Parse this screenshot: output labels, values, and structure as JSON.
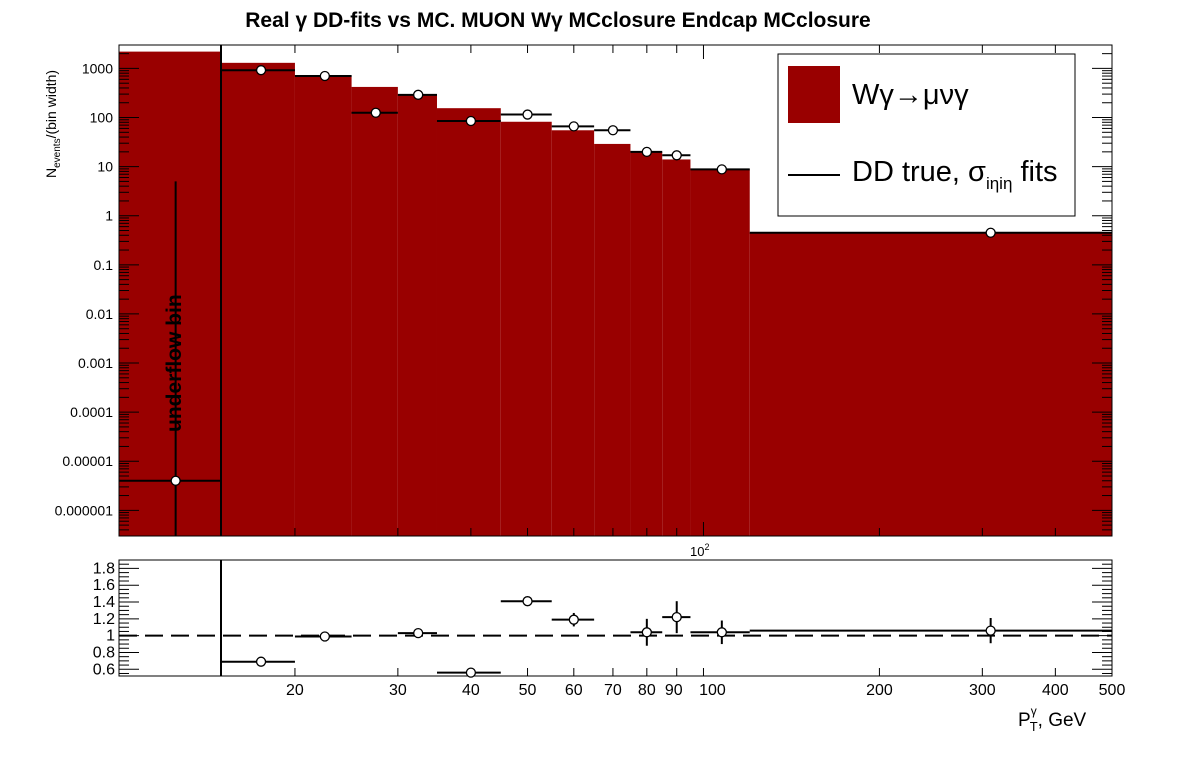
{
  "chart_data": [
    {
      "type": "bar",
      "title": "Real γ DD-fits vs MC. MUON Wγ  MCclosure Endcap  MCclosure",
      "ylabel_main": "N",
      "ylabel_sub": "events",
      "ylabel_rest": "/(bin width)",
      "x_scale": "log",
      "y_scale": "log",
      "xlim": [
        10,
        500
      ],
      "ylim": [
        3e-07,
        3000
      ],
      "yticks": [
        1000,
        100,
        10,
        1,
        0.1,
        0.01,
        0.001,
        0.0001,
        1e-05,
        1e-06
      ],
      "ytick_labels": [
        "1000",
        "100",
        "10",
        "1",
        "0.1",
        "0.01",
        "0.001",
        "0.0001",
        "0.00001",
        "0.000001"
      ],
      "x_exponent_label": "10",
      "x_exponent_power": "2",
      "annotation": "underflow bin",
      "legend": [
        {
          "label": "Wγ→μνγ",
          "style": "fill",
          "color": "#990000"
        },
        {
          "label_main": "DD true, σ",
          "label_sub": "iηiη",
          "label_rest": " fits",
          "style": "line",
          "color": "#000000"
        }
      ],
      "legend_position": "top-right",
      "mc_histogram": {
        "name": "Wγ→μνγ",
        "color": "#990000",
        "bins": [
          {
            "x_low": 10,
            "x_high": 15,
            "value": 2200
          },
          {
            "x_low": 15,
            "x_high": 20,
            "value": 1300
          },
          {
            "x_low": 20,
            "x_high": 25,
            "value": 720
          },
          {
            "x_low": 25,
            "x_high": 30,
            "value": 420
          },
          {
            "x_low": 30,
            "x_high": 35,
            "value": 300
          },
          {
            "x_low": 35,
            "x_high": 45,
            "value": 155
          },
          {
            "x_low": 45,
            "x_high": 55,
            "value": 82
          },
          {
            "x_low": 55,
            "x_high": 65,
            "value": 55
          },
          {
            "x_low": 65,
            "x_high": 75,
            "value": 29
          },
          {
            "x_low": 75,
            "x_high": 85,
            "value": 20
          },
          {
            "x_low": 85,
            "x_high": 95,
            "value": 14
          },
          {
            "x_low": 95,
            "x_high": 120,
            "value": 8.8
          },
          {
            "x_low": 120,
            "x_high": 500,
            "value": 0.45
          }
        ]
      },
      "dd_points": {
        "name": "DD true, σiηiη fits",
        "points": [
          {
            "x": 12.5,
            "x_low": 10,
            "x_high": 15,
            "y": 4e-06,
            "y_low": 3e-07,
            "y_high": 5
          },
          {
            "x": 17.5,
            "x_low": 15,
            "x_high": 20,
            "y": 920
          },
          {
            "x": 22.5,
            "x_low": 20,
            "x_high": 25,
            "y": 700
          },
          {
            "x": 27.5,
            "x_low": 25,
            "x_high": 30,
            "y": 125
          },
          {
            "x": 32.5,
            "x_low": 30,
            "x_high": 35,
            "y": 290
          },
          {
            "x": 40,
            "x_low": 35,
            "x_high": 45,
            "y": 85
          },
          {
            "x": 50,
            "x_low": 45,
            "x_high": 55,
            "y": 115
          },
          {
            "x": 60,
            "x_low": 55,
            "x_high": 65,
            "y": 66
          },
          {
            "x": 70,
            "x_low": 65,
            "x_high": 75,
            "y": 55
          },
          {
            "x": 80,
            "x_low": 75,
            "x_high": 85,
            "y": 20
          },
          {
            "x": 90,
            "x_low": 85,
            "x_high": 95,
            "y": 17
          },
          {
            "x": 107.5,
            "x_low": 95,
            "x_high": 120,
            "y": 8.8
          },
          {
            "x": 310,
            "x_low": 120,
            "x_high": 500,
            "y": 0.45
          }
        ]
      }
    },
    {
      "type": "scatter",
      "x_scale": "log",
      "xlim": [
        10,
        500
      ],
      "ylim": [
        0.52,
        1.9
      ],
      "yticks": [
        1.8,
        1.6,
        1.4,
        1.2,
        1,
        0.8,
        0.6
      ],
      "ytick_labels": [
        "1.8",
        "1.6",
        "1.4",
        "1.2",
        "1",
        "0.8",
        "0.6"
      ],
      "xticks": [
        20,
        30,
        40,
        50,
        60,
        70,
        80,
        90,
        100,
        200,
        300,
        400,
        500
      ],
      "xtick_labels": [
        "20",
        "30",
        "40",
        "50",
        "60",
        "70",
        "80",
        "90",
        "100",
        "200",
        "300",
        "400",
        "500"
      ],
      "xlabel_main": "P",
      "xlabel_sub": "T",
      "xlabel_sup": "γ",
      "xlabel_rest": ", GeV",
      "reference_line": 1,
      "points": [
        {
          "x": 17.5,
          "x_low": 15,
          "x_high": 20,
          "y": 0.69,
          "yerr": 0
        },
        {
          "x": 22.5,
          "x_low": 20,
          "x_high": 25,
          "y": 0.99,
          "yerr": 0
        },
        {
          "x": 32.5,
          "x_low": 30,
          "x_high": 35,
          "y": 1.03,
          "yerr": 0.03
        },
        {
          "x": 40,
          "x_low": 35,
          "x_high": 45,
          "y": 0.56,
          "yerr": 0.02
        },
        {
          "x": 50,
          "x_low": 45,
          "x_high": 55,
          "y": 1.41,
          "yerr": 0.05
        },
        {
          "x": 60,
          "x_low": 55,
          "x_high": 65,
          "y": 1.19,
          "yerr": 0.08
        },
        {
          "x": 80,
          "x_low": 75,
          "x_high": 85,
          "y": 1.04,
          "yerr": 0.16
        },
        {
          "x": 90,
          "x_low": 85,
          "x_high": 95,
          "y": 1.22,
          "yerr": 0.19
        },
        {
          "x": 107.5,
          "x_low": 95,
          "x_high": 120,
          "y": 1.04,
          "yerr": 0.14
        },
        {
          "x": 310,
          "x_low": 120,
          "x_high": 500,
          "y": 1.06,
          "yerr": 0.15
        }
      ]
    }
  ]
}
